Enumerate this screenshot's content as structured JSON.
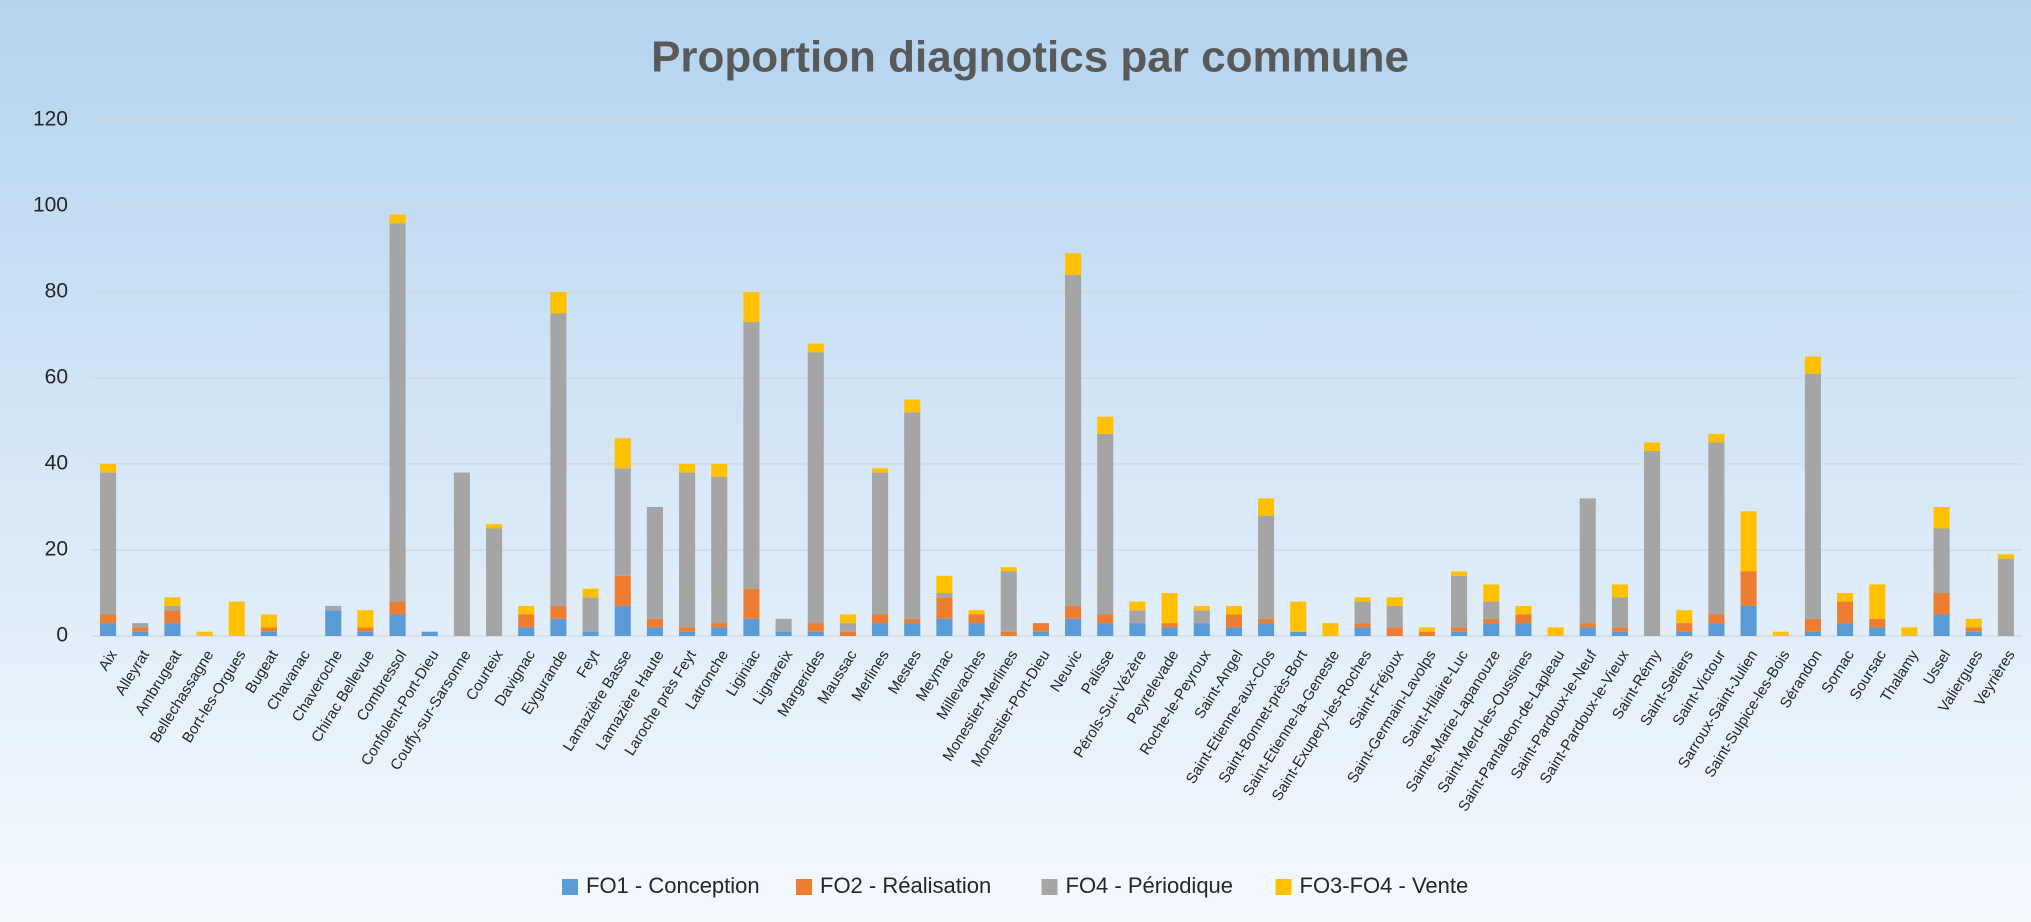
{
  "chart_data": {
    "type": "bar",
    "stacked": true,
    "title": "Proportion diagnotics par commune",
    "categories": [
      "Aix",
      "Alleyrat",
      "Ambrugeat",
      "Bellechassagne",
      "Bort-les-Orgues",
      "Bugeat",
      "Chavanac",
      "Chaveroche",
      "Chirac Bellevue",
      "Combressol",
      "Confolent-Port-Dieu",
      "Couffy-sur-Sarsonne",
      "Courteix",
      "Davignac",
      "Eygurande",
      "Feyt",
      "Lamazière Basse",
      "Lamazière Haute",
      "Laroche près Feyt",
      "Latronche",
      "Liginiac",
      "Lignareix",
      "Margerides",
      "Maussac",
      "Merlines",
      "Mestes",
      "Meymac",
      "Millevaches",
      "Monestier-Merlines",
      "Monestier-Port-Dieu",
      "Neuvic",
      "Palisse",
      "Pérols-Sur-Vézère",
      "Peyrelevade",
      "Roche-le-Peyroux",
      "Saint-Angel",
      "Saint-Etienne-aux-Clos",
      "Saint-Bonnet-près-Bort",
      "Saint-Etienne-la-Geneste",
      "Saint-Exupery-les-Roches",
      "Saint-Fréjoux",
      "Saint-Germain-Lavolps",
      "Saint-Hilaire-Luc",
      "Sainte-Marie-Lapanouze",
      "Saint-Merd-les-Oussines",
      "Saint-Pantaleon-de-Lapleau",
      "Saint-Pardoux-le-Neuf",
      "Saint-Pardoux-le-Vieux",
      "Saint-Rémy",
      "Saint-Setiers",
      "Saint-Victour",
      "Sarroux-Saint-Julien",
      "Saint-Sulpice-les-Bois",
      "Sérandon",
      "Sornac",
      "Soursac",
      "Thalamy",
      "Ussel",
      "Valiergues",
      "Veyrières"
    ],
    "series": [
      {
        "name": "FO1 - Conception",
        "color": "#5b9bd5",
        "values": [
          3,
          1,
          3,
          0,
          0,
          1,
          0,
          6,
          1,
          5,
          1,
          0,
          0,
          2,
          4,
          1,
          7,
          2,
          1,
          2,
          4,
          1,
          1,
          0,
          3,
          3,
          4,
          3,
          0,
          1,
          4,
          3,
          3,
          2,
          3,
          2,
          3,
          1,
          0,
          2,
          0,
          0,
          1,
          3,
          3,
          0,
          2,
          1,
          0,
          1,
          3,
          7,
          0,
          1,
          3,
          2,
          0,
          5,
          1,
          0
        ]
      },
      {
        "name": "FO2 - Réalisation",
        "color": "#ed7d31",
        "values": [
          2,
          1,
          3,
          0,
          0,
          1,
          0,
          0,
          1,
          3,
          0,
          0,
          0,
          3,
          3,
          0,
          7,
          2,
          1,
          1,
          7,
          0,
          2,
          1,
          2,
          1,
          5,
          2,
          1,
          2,
          3,
          2,
          0,
          1,
          0,
          3,
          1,
          0,
          0,
          1,
          2,
          1,
          1,
          1,
          2,
          0,
          1,
          1,
          0,
          2,
          2,
          8,
          0,
          3,
          5,
          2,
          0,
          5,
          1,
          0
        ]
      },
      {
        "name": "FO4 - Périodique",
        "color": "#a5a5a5",
        "values": [
          33,
          1,
          1,
          0,
          0,
          0,
          0,
          1,
          0,
          88,
          0,
          38,
          25,
          0,
          68,
          8,
          25,
          26,
          36,
          34,
          62,
          3,
          63,
          2,
          33,
          48,
          1,
          0,
          14,
          0,
          77,
          42,
          3,
          0,
          3,
          0,
          24,
          0,
          0,
          5,
          5,
          0,
          12,
          4,
          0,
          0,
          29,
          7,
          43,
          0,
          40,
          0,
          0,
          57,
          0,
          0,
          0,
          15,
          0,
          18
        ]
      },
      {
        "name": "FO3-FO4 - Vente",
        "color": "#ffc000",
        "values": [
          2,
          0,
          2,
          1,
          8,
          3,
          0,
          0,
          4,
          2,
          0,
          0,
          1,
          2,
          5,
          2,
          7,
          0,
          2,
          3,
          7,
          0,
          2,
          2,
          1,
          3,
          4,
          1,
          1,
          0,
          5,
          4,
          2,
          7,
          1,
          2,
          4,
          7,
          3,
          1,
          2,
          1,
          1,
          4,
          2,
          2,
          0,
          3,
          2,
          3,
          2,
          14,
          1,
          4,
          2,
          8,
          2,
          5,
          2,
          1
        ]
      }
    ],
    "ylim": [
      0,
      120
    ],
    "yticks": [
      0,
      20,
      40,
      60,
      80,
      100,
      120
    ],
    "grid": true,
    "legend": "bottom"
  }
}
